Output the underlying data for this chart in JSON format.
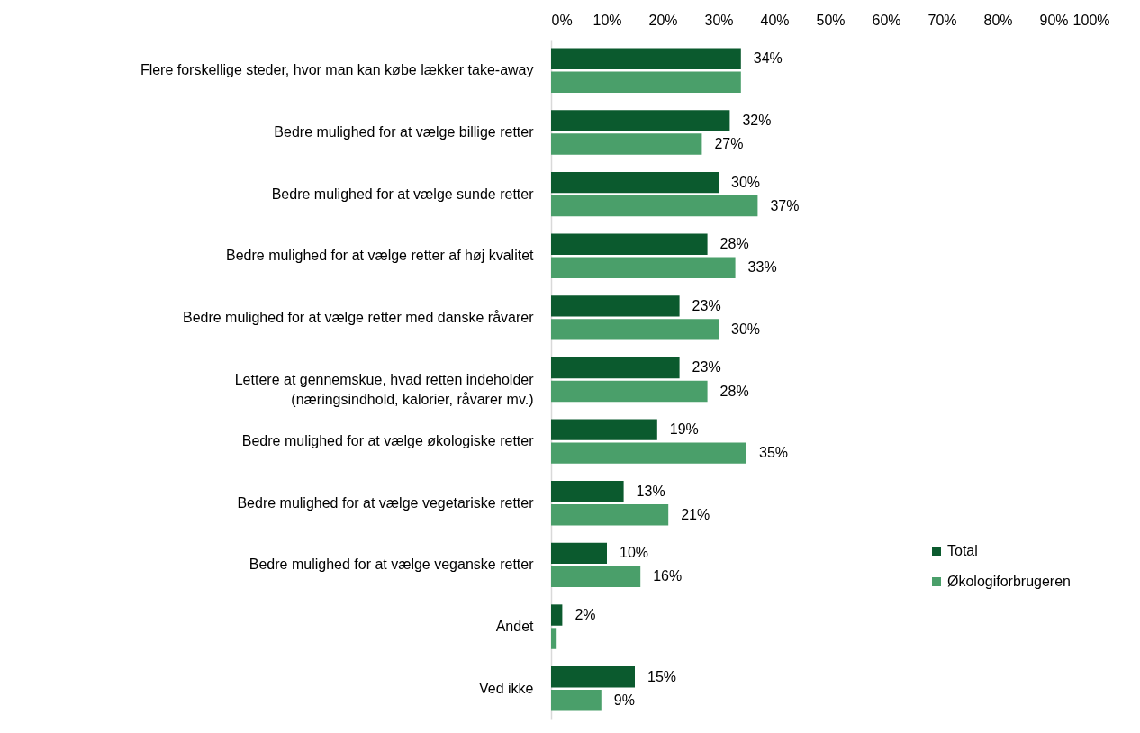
{
  "chart_data": {
    "type": "bar",
    "orientation": "horizontal",
    "categories": [
      "Flere forskellige steder, hvor man kan købe lækker take-away",
      "Bedre mulighed for at vælge billige retter",
      "Bedre mulighed for at vælge sunde retter",
      "Bedre mulighed for at vælge retter af høj kvalitet",
      "Bedre mulighed for at vælge retter med danske råvarer",
      "Lettere at gennemskue, hvad retten indeholder\n(næringsindhold, kalorier, råvarer mv.)",
      "Bedre mulighed for at vælge økologiske retter",
      "Bedre mulighed for at vælge vegetariske retter",
      "Bedre mulighed for at vælge veganske retter",
      "Andet",
      "Ved ikke"
    ],
    "series": [
      {
        "name": "Total",
        "color": "#0b5a2e",
        "values": [
          34,
          32,
          30,
          28,
          23,
          23,
          19,
          13,
          10,
          2,
          15
        ],
        "value_labels": [
          "34%",
          "32%",
          "30%",
          "28%",
          "23%",
          "23%",
          "19%",
          "13%",
          "10%",
          "2%",
          "15%"
        ]
      },
      {
        "name": "Økologiforbrugeren",
        "color": "#4a9f6a",
        "values": [
          34,
          27,
          37,
          33,
          30,
          28,
          35,
          21,
          16,
          1,
          9
        ],
        "value_labels": [
          null,
          "27%",
          "37%",
          "33%",
          "30%",
          "28%",
          "35%",
          "21%",
          "16%",
          null,
          "9%"
        ]
      }
    ],
    "xlim": [
      0,
      100
    ],
    "xticks": [
      {
        "value": 0,
        "label": "0%"
      },
      {
        "value": 10,
        "label": "10%"
      },
      {
        "value": 20,
        "label": "20%"
      },
      {
        "value": 30,
        "label": "30%"
      },
      {
        "value": 40,
        "label": "40%"
      },
      {
        "value": 50,
        "label": "50%"
      },
      {
        "value": 60,
        "label": "60%"
      },
      {
        "value": 70,
        "label": "70%"
      },
      {
        "value": 80,
        "label": "80%"
      },
      {
        "value": 90,
        "label": "90%"
      },
      {
        "value": 100,
        "label": "100%"
      }
    ],
    "grid": false,
    "legend": "right"
  }
}
